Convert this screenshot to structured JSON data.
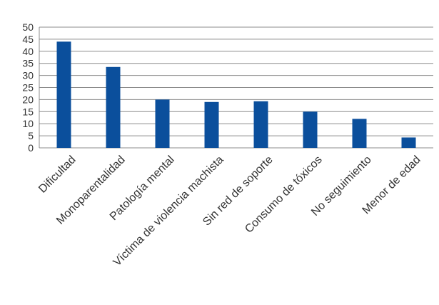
{
  "chart_data": {
    "type": "bar",
    "title": "",
    "xlabel": "",
    "ylabel": "",
    "categories": [
      "Dificultad",
      "Monoparentalidad",
      "Patología mental",
      "Víctima de violencia machista",
      "Sin red de soporte",
      "Consumo de tóxicos",
      "No seguimiento",
      "Menor de edad"
    ],
    "values": [
      44,
      33.5,
      20,
      19,
      19.3,
      15,
      12,
      4.3
    ],
    "ylim": [
      0,
      50
    ],
    "yticks": [
      0,
      5,
      10,
      15,
      20,
      25,
      30,
      35,
      40,
      45,
      50
    ],
    "grid": true,
    "bar_color": "#0b4f9c"
  }
}
